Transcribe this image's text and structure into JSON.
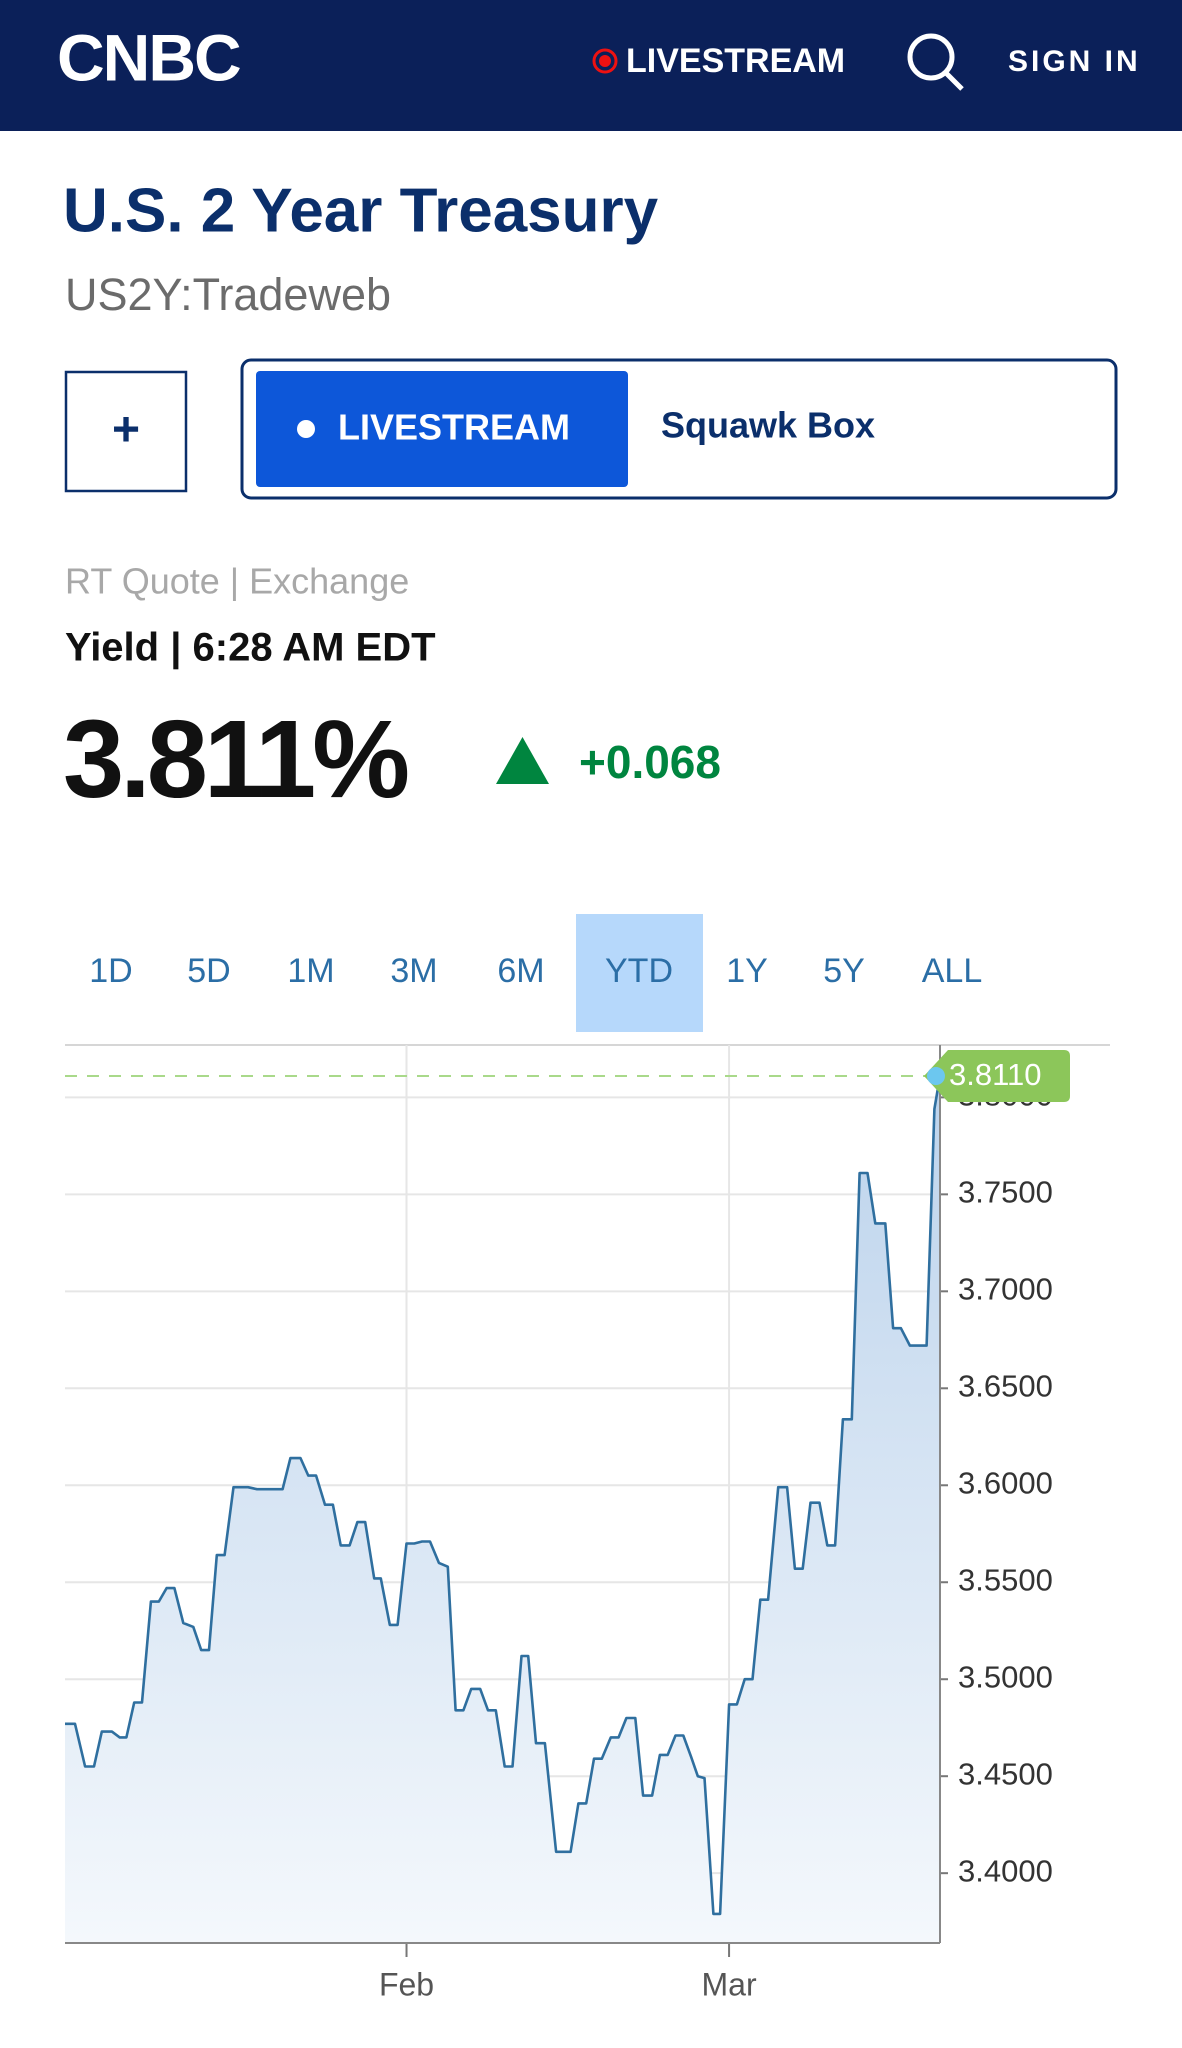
{
  "header": {
    "logo": "CNBC",
    "livestream": "LIVESTREAM",
    "sign_in": "SIGN IN"
  },
  "quote": {
    "title": "U.S. 2 Year Treasury",
    "symbol": "US2Y:Tradeweb"
  },
  "buttons": {
    "add": "+",
    "livestream": "LIVESTREAM",
    "show": "Squawk Box"
  },
  "quote_info": {
    "source": "RT Quote | Exchange",
    "label": "Yield | 6:28 AM EDT",
    "price": "3.811%",
    "change": "+0.068"
  },
  "ranges": [
    "1D",
    "5D",
    "1M",
    "3M",
    "6M",
    "YTD",
    "1Y",
    "5Y",
    "ALL"
  ],
  "active_range": 5,
  "chart_data": {
    "type": "line",
    "color": "#2f6f9f",
    "x": [
      0,
      0.9,
      1.8,
      2.6,
      3.3,
      4.2,
      4.9,
      5.5,
      6.2,
      6.9,
      7.7,
      8.4,
      9.1,
      9.8,
      10.6,
      11.5,
      12.2,
      12.9,
      13.6,
      14.3,
      15.1,
      16.4,
      17.2,
      19.5,
      20.2,
      21.1,
      21.8,
      22.5,
      23.3,
      24.0,
      24.7,
      25.5,
      26.2,
      26.9,
      27.7,
      28.3,
      29.1,
      29.8,
      30.6,
      31.3,
      32.0,
      32.7,
      33.5,
      34.3,
      35.0,
      35.7,
      36.4,
      37.2,
      37.9,
      38.6,
      39.4,
      40.1,
      40.9,
      41.5,
      42.2,
      43.0,
      44.0,
      45.3,
      46.0,
      46.7,
      47.4,
      48.1,
      48.9,
      49.6,
      50.3,
      51.1,
      51.8,
      52.6,
      53.3,
      54.0,
      54.7,
      55.4,
      56.1,
      56.7,
      57.3,
      58.1,
      58.7,
      59.5,
      60.2,
      60.9,
      61.6,
      62.3,
      63.0,
      63.9,
      64.7,
      65.4,
      66.1,
      66.8,
      67.6,
      68.3,
      69.0,
      69.7,
      70.5,
      71.2,
      71.9,
      72.6,
      73.5,
      74.2,
      74.9,
      75.7,
      77.2,
      77.9,
      78.4
    ],
    "values": [
      3.477,
      3.477,
      3.455,
      3.455,
      3.473,
      3.473,
      3.47,
      3.47,
      3.488,
      3.488,
      3.54,
      3.54,
      3.547,
      3.547,
      3.529,
      3.527,
      3.515,
      3.515,
      3.564,
      3.564,
      3.599,
      3.599,
      3.598,
      3.598,
      3.614,
      3.614,
      3.605,
      3.605,
      3.59,
      3.59,
      3.569,
      3.569,
      3.581,
      3.581,
      3.552,
      3.552,
      3.528,
      3.528,
      3.57,
      3.57,
      3.571,
      3.571,
      3.56,
      3.558,
      3.484,
      3.484,
      3.495,
      3.495,
      3.484,
      3.484,
      3.455,
      3.455,
      3.512,
      3.512,
      3.467,
      3.467,
      3.411,
      3.411,
      3.436,
      3.436,
      3.459,
      3.459,
      3.47,
      3.47,
      3.48,
      3.48,
      3.44,
      3.44,
      3.461,
      3.461,
      3.471,
      3.471,
      3.46,
      3.45,
      3.449,
      3.379,
      3.379,
      3.487,
      3.487,
      3.5,
      3.5,
      3.541,
      3.541,
      3.599,
      3.599,
      3.557,
      3.557,
      3.591,
      3.591,
      3.569,
      3.569,
      3.634,
      3.634,
      3.761,
      3.761,
      3.735,
      3.735,
      3.681,
      3.681,
      3.672,
      3.672,
      3.794,
      3.811
    ],
    "xlim": [
      0,
      78.4
    ],
    "xticks": [
      {
        "value": 30.6,
        "label": "Feb"
      },
      {
        "value": 59.5,
        "label": "Mar"
      }
    ],
    "ylim": [
      3.364,
      3.827
    ],
    "yticks": [
      {
        "value": 3.4,
        "label": "3.4000"
      },
      {
        "value": 3.45,
        "label": "3.4500"
      },
      {
        "value": 3.5,
        "label": "3.5000"
      },
      {
        "value": 3.55,
        "label": "3.5500"
      },
      {
        "value": 3.6,
        "label": "3.6000"
      },
      {
        "value": 3.65,
        "label": "3.6500"
      },
      {
        "value": 3.7,
        "label": "3.7000"
      },
      {
        "value": 3.75,
        "label": "3.7500"
      },
      {
        "value": 3.8,
        "label": "3.8000"
      }
    ],
    "grid": true,
    "current": {
      "value": 3.811,
      "label": "3.8110"
    }
  }
}
